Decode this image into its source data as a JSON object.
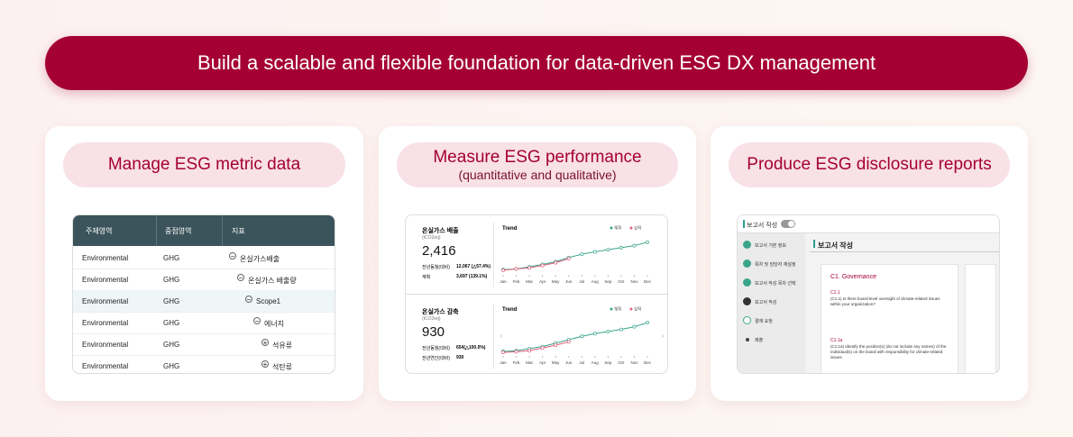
{
  "banner": "Build a scalable and flexible foundation for data-driven ESG DX management",
  "cards": [
    {
      "title": "Manage ESG metric data"
    },
    {
      "title": "Measure ESG performance",
      "subtitle": "(quantitative and qualitative)"
    },
    {
      "title": "Produce ESG disclosure reports"
    }
  ],
  "table": {
    "header": [
      "주제영역",
      "중점영역",
      "지표"
    ],
    "selected": 2,
    "rows": [
      {
        "area": "Environmental",
        "focus": "GHG",
        "indicator": "온실가스배출",
        "level": 0,
        "expanded": true
      },
      {
        "area": "Environmental",
        "focus": "GHG",
        "indicator": "온실가스 배출량",
        "level": 1,
        "expanded": true
      },
      {
        "area": "Environmental",
        "focus": "GHG",
        "indicator": "Scope1",
        "level": 2,
        "expanded": true
      },
      {
        "area": "Environmental",
        "focus": "GHG",
        "indicator": "에너지",
        "level": 3,
        "expanded": true
      },
      {
        "area": "Environmental",
        "focus": "GHG",
        "indicator": "석유류",
        "level": 4,
        "expanded": false
      },
      {
        "area": "Environmental",
        "focus": "GHG",
        "indicator": "석탄류",
        "level": 4,
        "expanded": false
      }
    ]
  },
  "dashboard": {
    "panels": [
      {
        "title": "온실가스 배출",
        "unit": "(tCO2eq)",
        "value": "2,416",
        "rows": [
          [
            "전년동월(대비)",
            "12,067 (△57.4%)"
          ],
          [
            "계획",
            "3,697 (139.1%)"
          ]
        ],
        "trend": {
          "type": "line",
          "title": "Trend",
          "categories": [
            "Jan",
            "Feb",
            "Mar",
            "Apr",
            "May",
            "Jun",
            "Jul",
            "Aug",
            "Sep",
            "Oct",
            "Nov",
            "Dec"
          ],
          "ylim": [
            0,
            100
          ],
          "series": [
            {
              "name": "계획",
              "color": "#3aa58c",
              "values": [
                10,
                12,
                18,
                25,
                33,
                45,
                55,
                62,
                68,
                74,
                80,
                90
              ]
            },
            {
              "name": "실적",
              "color": "#e0607a",
              "values": [
                8,
                12,
                15,
                22,
                30,
                42,
                null,
                null,
                null,
                null,
                null,
                null
              ]
            }
          ]
        }
      },
      {
        "title": "온실가스 감축",
        "unit": "(tCO2eq)",
        "value": "930",
        "rows": [
          [
            "전년동월(대비)",
            "654(△100.0%)"
          ],
          [
            "전년연간(대비)",
            "930"
          ]
        ],
        "trend": {
          "type": "line",
          "title": "Trend",
          "categories": [
            "Jan",
            "Feb",
            "Mar",
            "Apr",
            "May",
            "Jun",
            "Jul",
            "Aug",
            "Sep",
            "Oct",
            "Nov",
            "Dec"
          ],
          "ylim": [
            0,
            100
          ],
          "series": [
            {
              "name": "계획",
              "color": "#3aa58c",
              "values": [
                8,
                10,
                16,
                22,
                32,
                42,
                52,
                60,
                66,
                72,
                80,
                92
              ]
            },
            {
              "name": "실적",
              "color": "#e0607a",
              "values": [
                5,
                7,
                10,
                18,
                26,
                36,
                null,
                null,
                null,
                null,
                null,
                null
              ]
            }
          ]
        }
      }
    ]
  },
  "report": {
    "header": "보고서 작성",
    "title": "보고서 작성",
    "steps": [
      {
        "label": "보고서 기본 정보",
        "state": "done"
      },
      {
        "label": "목차 및 담당자 재설정",
        "state": "done"
      },
      {
        "label": "보고서 작성 목차 선택",
        "state": "done"
      },
      {
        "label": "보고서 작성",
        "state": "current"
      },
      {
        "label": "결재 요청",
        "state": "todo"
      },
      {
        "label": "제출",
        "state": "dot"
      }
    ],
    "section": "C1. Governance",
    "questions": [
      {
        "id": "C1.1",
        "text": "(C1.1) Is there board-level oversight of climate-related issues within your organization?"
      },
      {
        "id": "C1.1a",
        "text": "(C1.1a) Identify the position(s) (do not include any names) of the individual(s) on the board with responsibility for climate-related issues"
      }
    ]
  }
}
